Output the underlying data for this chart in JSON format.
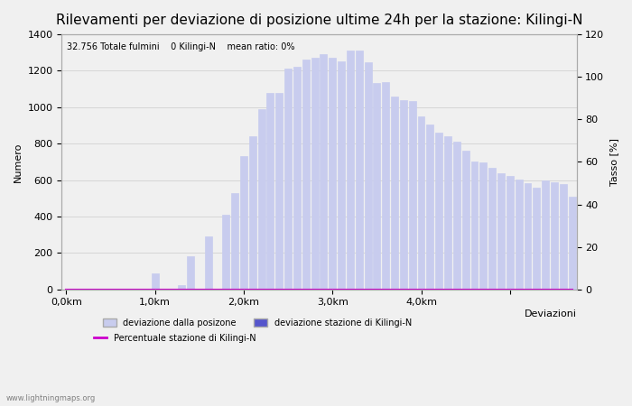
{
  "title": "Rilevamenti per deviazione di posizione ultime 24h per la stazione: Kilingi-N",
  "subtitle": "32.756 Totale fulmini    0 Kilingi-N    mean ratio: 0%",
  "xlabel": "Deviazioni",
  "ylabel_left": "Numero",
  "ylabel_right": "Tasso [%]",
  "watermark": "www.lightningmaps.org",
  "bar_values": [
    0,
    0,
    0,
    0,
    0,
    0,
    0,
    0,
    0,
    0,
    90,
    0,
    0,
    25,
    180,
    0,
    290,
    0,
    410,
    530,
    730,
    840,
    990,
    1080,
    1080,
    1210,
    1220,
    1260,
    1270,
    1290,
    1270,
    1250,
    1310,
    1310,
    1245,
    1135,
    1140,
    1060,
    1040,
    1035,
    950,
    905,
    860,
    840,
    810,
    760,
    700,
    695,
    665,
    640,
    625,
    605,
    585,
    560,
    600,
    590,
    580,
    510
  ],
  "station_bar_values": [
    0,
    0,
    0,
    0,
    0,
    0,
    0,
    0,
    0,
    0,
    0,
    0,
    0,
    0,
    0,
    0,
    0,
    0,
    0,
    0,
    0,
    0,
    0,
    0,
    0,
    0,
    0,
    0,
    0,
    0,
    0,
    0,
    0,
    0,
    0,
    0,
    0,
    0,
    0,
    0,
    0,
    0,
    0,
    0,
    0,
    0,
    0,
    0,
    0,
    0,
    0,
    0,
    0,
    0,
    0,
    0,
    0,
    0
  ],
  "percentage_line": [
    0,
    0,
    0,
    0,
    0,
    0,
    0,
    0,
    0,
    0,
    0,
    0,
    0,
    0,
    0,
    0,
    0,
    0,
    0,
    0,
    0,
    0,
    0,
    0,
    0,
    0,
    0,
    0,
    0,
    0,
    0,
    0,
    0,
    0,
    0,
    0,
    0,
    0,
    0,
    0,
    0,
    0,
    0,
    0,
    0,
    0,
    0,
    0,
    0,
    0,
    0,
    0,
    0,
    0,
    0,
    0,
    0,
    0
  ],
  "x_tick_positions": [
    0,
    10,
    20,
    30,
    40,
    50
  ],
  "x_tick_labels": [
    "0,0km",
    "1,0km",
    "2,0km",
    "3,0km",
    "4,0km",
    ""
  ],
  "ylim_left": [
    0,
    1400
  ],
  "ylim_right": [
    0,
    120
  ],
  "yticks_left": [
    0,
    200,
    400,
    600,
    800,
    1000,
    1200,
    1400
  ],
  "yticks_right": [
    0,
    20,
    40,
    60,
    80,
    100,
    120
  ],
  "bar_color_light": "#c8ccee",
  "bar_color_dark": "#5555cc",
  "line_color": "#cc00cc",
  "grid_color": "#cccccc",
  "bg_color": "#f0f0f0",
  "title_fontsize": 11,
  "label_fontsize": 8,
  "tick_fontsize": 8
}
